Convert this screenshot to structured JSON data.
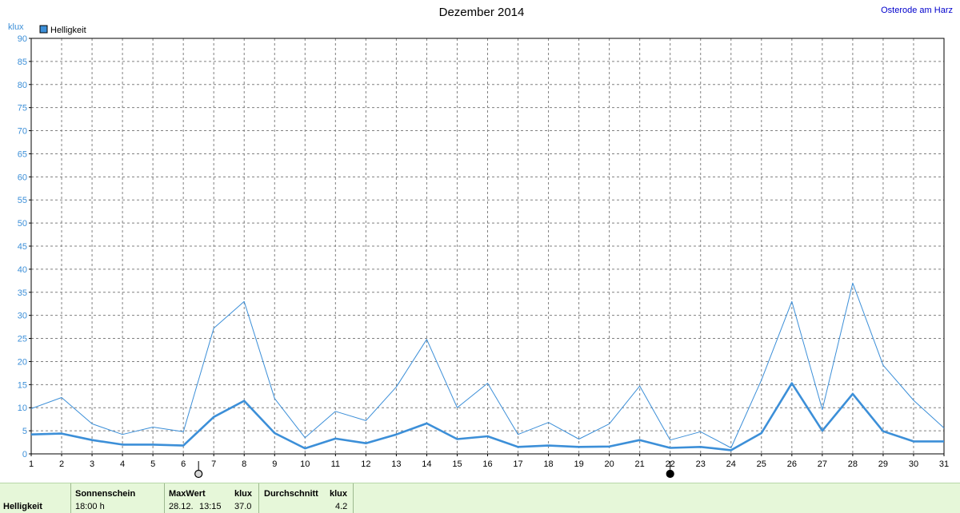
{
  "header": {
    "title": "Dezember 2014",
    "location": "Osterode am Harz",
    "unit": "klux"
  },
  "legend": {
    "label": "Helligkeit",
    "color": "#3c8fd8"
  },
  "colors": {
    "series": "#3c8fd8",
    "grid": "#808080",
    "axis": "#000000",
    "stats_bg": "#e6f7d9"
  },
  "moon_markers": [
    {
      "day": 6.5,
      "phase": "full-moon"
    },
    {
      "day": 22,
      "phase": "new-moon"
    }
  ],
  "chart_data": {
    "type": "line",
    "x": [
      1,
      2,
      3,
      4,
      5,
      6,
      7,
      8,
      9,
      10,
      11,
      12,
      13,
      14,
      15,
      16,
      17,
      18,
      19,
      20,
      21,
      22,
      23,
      24,
      25,
      26,
      27,
      28,
      29,
      30,
      31
    ],
    "xlim": [
      1,
      31
    ],
    "ylim": [
      0,
      90
    ],
    "ytick_step": 5,
    "ylabel": "klux",
    "grid": true,
    "legend_position": "top-left",
    "series": [
      {
        "name": "Helligkeit",
        "style": "max-thin",
        "values": [
          9.8,
          12.2,
          6.5,
          4.2,
          5.8,
          4.8,
          27.2,
          33.0,
          12.0,
          3.5,
          9.2,
          7.2,
          14.5,
          24.8,
          10.0,
          15.3,
          4.2,
          6.8,
          3.2,
          6.5,
          14.7,
          3.0,
          4.8,
          1.3,
          16.0,
          33.0,
          9.6,
          37.0,
          19.2,
          11.6,
          5.6
        ]
      },
      {
        "name": "",
        "style": "mean-thick",
        "values": [
          4.2,
          4.4,
          3.0,
          2.0,
          2.0,
          1.8,
          8.0,
          11.5,
          4.5,
          1.2,
          3.3,
          2.3,
          4.2,
          6.6,
          3.2,
          3.8,
          1.5,
          1.8,
          1.5,
          1.6,
          3.0,
          1.3,
          1.5,
          0.8,
          4.5,
          15.3,
          5.0,
          13.0,
          4.9,
          2.7,
          2.7
        ]
      }
    ]
  },
  "stats": {
    "row_label": "Helligkeit",
    "sun_header": "Sonnenschein",
    "sun_value": "18:00 h",
    "max_header": "MaxWert",
    "max_unit": "klux",
    "max_date": "28.12.",
    "max_time": "13:15",
    "max_value": "37.0",
    "avg_header": "Durchschnitt",
    "avg_unit": "klux",
    "avg_value": "4.2"
  }
}
